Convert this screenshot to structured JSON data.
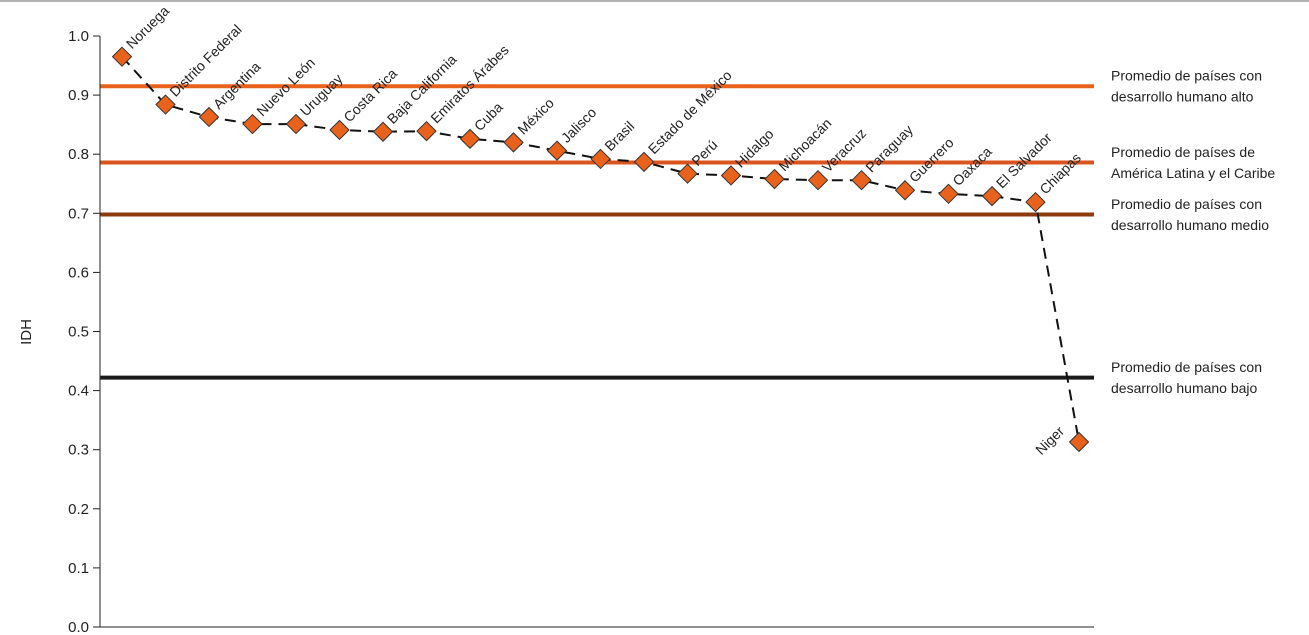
{
  "chart_data": {
    "type": "line",
    "ylabel": "IDH",
    "xlabel": "",
    "ylim": [
      0,
      1.0
    ],
    "yticks": [
      "0.0",
      "0.1",
      "0.2",
      "0.3",
      "0.4",
      "0.5",
      "0.6",
      "0.7",
      "0.8",
      "0.9",
      "1.0"
    ],
    "grid": false,
    "marker_color": "#e8621c",
    "categories": [
      "Noruega",
      "Distrito Federal",
      "Argentina",
      "Nuevo León",
      "Uruguay",
      "Costa Rica",
      "Baja California",
      "Emiratos Árabes",
      "Cuba",
      "México",
      "Jalisco",
      "Brasil",
      "Estado de México",
      "Perú",
      "Hidalgo",
      "Michoacán",
      "Veracruz",
      "Paraguay",
      "Guerrero",
      "Oaxaca",
      "El Salvador",
      "Chiapas",
      "Niger"
    ],
    "values": [
      0.965,
      0.884,
      0.863,
      0.851,
      0.851,
      0.841,
      0.838,
      0.839,
      0.826,
      0.82,
      0.806,
      0.792,
      0.787,
      0.767,
      0.764,
      0.758,
      0.756,
      0.756,
      0.739,
      0.733,
      0.729,
      0.719,
      0.313
    ],
    "reference_lines": [
      {
        "value": 0.915,
        "color": "#e8621c",
        "label_lines": [
          "Promedio de países con",
          "desarrollo humano alto"
        ]
      },
      {
        "value": 0.786,
        "color": "#d9541e",
        "label_lines": [
          "Promedio de países de",
          "América Latina y el Caribe"
        ]
      },
      {
        "value": 0.698,
        "color": "#8b3a0e",
        "label_lines": [
          "Promedio de países con",
          "desarrollo humano medio"
        ]
      },
      {
        "value": 0.422,
        "color": "#1a1a1a",
        "label_lines": [
          "Promedio de países con",
          "desarrollo humano bajo"
        ]
      }
    ]
  }
}
